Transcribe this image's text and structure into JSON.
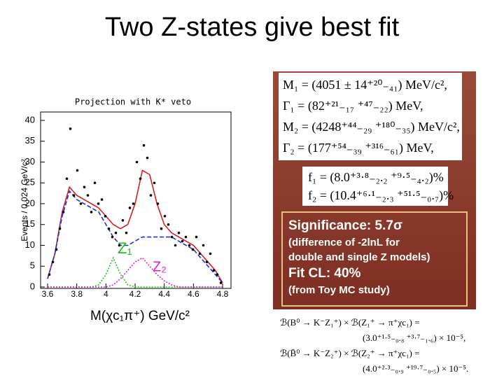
{
  "slide": {
    "title": "Two Z-states give best fit"
  },
  "chart_data": {
    "type": "histogram-fit",
    "title": "Projection with K* veto",
    "x_label": "M(χc₁π⁺) GeV/c²",
    "y_label": "Events / 0.024 GeV/c²",
    "xlim": [
      3.6,
      4.8
    ],
    "xticks": [
      3.6,
      3.8,
      4,
      4.2,
      4.4,
      4.6,
      4.8
    ],
    "ylim": [
      0,
      40
    ],
    "yticks": [
      0,
      5,
      10,
      15,
      20,
      25,
      30,
      35,
      40
    ],
    "series": [
      {
        "style": "points",
        "color": "#000000",
        "x": [
          3.612,
          3.636,
          3.66,
          3.684,
          3.708,
          3.732,
          3.756,
          3.78,
          3.804,
          3.828,
          3.852,
          3.876,
          3.9,
          3.924,
          3.948,
          3.972,
          3.996,
          4.02,
          4.044,
          4.068,
          4.092,
          4.116,
          4.14,
          4.164,
          4.188,
          4.212,
          4.236,
          4.26,
          4.284,
          4.308,
          4.332,
          4.356,
          4.38,
          4.404,
          4.428,
          4.452,
          4.476,
          4.5,
          4.524,
          4.548,
          4.572,
          4.596,
          4.62,
          4.644,
          4.668,
          4.692,
          4.716,
          4.74,
          4.764,
          4.788
        ],
        "values": [
          3,
          6,
          9,
          14,
          18,
          26,
          38,
          22,
          28,
          20,
          24,
          22,
          18,
          25,
          20,
          21,
          17,
          14,
          12,
          13,
          10,
          16,
          13,
          19,
          20,
          30,
          26,
          34,
          31,
          22,
          25,
          20,
          14,
          17,
          15,
          12,
          10,
          13,
          11,
          12,
          10,
          9,
          12,
          8,
          10,
          6,
          8,
          4,
          3,
          1
        ]
      },
      {
        "style": "solid",
        "color": "#d42020",
        "x": [
          3.6,
          3.65,
          3.7,
          3.75,
          3.8,
          3.85,
          3.9,
          3.95,
          4.0,
          4.05,
          4.1,
          4.15,
          4.2,
          4.25,
          4.3,
          4.35,
          4.4,
          4.45,
          4.5,
          4.55,
          4.6,
          4.65,
          4.7,
          4.75,
          4.8
        ],
        "values": [
          2,
          8,
          18,
          24,
          22,
          21,
          20,
          19,
          17,
          15,
          14,
          15,
          20,
          28,
          27,
          20,
          15,
          13,
          12,
          11,
          10,
          8,
          6,
          4,
          1
        ]
      },
      {
        "style": "dashed",
        "color": "#2030d0",
        "x": [
          3.6,
          3.65,
          3.7,
          3.75,
          3.8,
          3.85,
          3.9,
          3.95,
          4.0,
          4.05,
          4.1,
          4.15,
          4.2,
          4.25,
          4.3,
          4.35,
          4.4,
          4.45,
          4.5,
          4.55,
          4.6,
          4.65,
          4.7,
          4.75,
          4.8
        ],
        "values": [
          2,
          8,
          17,
          23,
          21,
          20,
          19,
          18,
          15,
          12,
          10,
          10,
          11,
          12,
          12,
          12,
          12,
          12,
          11,
          10,
          9,
          7,
          5,
          3,
          1
        ]
      },
      {
        "style": "dotted",
        "color": "#20c020",
        "x": [
          3.6,
          3.65,
          3.7,
          3.75,
          3.8,
          3.85,
          3.9,
          3.95,
          4.0,
          4.05,
          4.1,
          4.15,
          4.2,
          4.25,
          4.3,
          4.35,
          4.4,
          4.45,
          4.5,
          4.55,
          4.6,
          4.65,
          4.7,
          4.75,
          4.8
        ],
        "values": [
          0,
          0,
          0,
          0,
          0,
          0,
          0,
          0.5,
          3,
          7,
          3,
          0.5,
          0,
          0,
          0,
          0,
          0,
          0,
          0,
          0,
          0,
          0,
          0,
          0,
          0
        ]
      },
      {
        "style": "dotted",
        "color": "#e020d0",
        "x": [
          3.6,
          3.65,
          3.7,
          3.75,
          3.8,
          3.85,
          3.9,
          3.95,
          4.0,
          4.05,
          4.1,
          4.15,
          4.2,
          4.25,
          4.3,
          4.35,
          4.4,
          4.45,
          4.5,
          4.55,
          4.6,
          4.65,
          4.7,
          4.75,
          4.8
        ],
        "values": [
          0,
          0,
          0,
          0,
          0,
          0,
          0,
          0,
          0,
          0.5,
          2,
          4,
          6,
          7,
          5,
          3,
          1.5,
          0.5,
          0,
          0,
          0,
          0,
          0,
          0,
          0
        ]
      }
    ],
    "annotations": [
      {
        "text": "Z₁",
        "color": "#20c020"
      },
      {
        "text": "Z₂",
        "color": "#e020d0"
      }
    ]
  },
  "fit_results": {
    "params": [
      "M₁ = (4051 ± 14⁺²⁰₋₄₁) MeV/c²,",
      "Γ₁ = (82⁺²¹₋₁₇ ⁺⁴⁷₋₂₂) MeV,",
      "M₂ = (4248⁺⁴⁴₋₂₉ ⁺¹⁸⁰₋₃₅) MeV/c²,",
      "Γ₂ = (177⁺⁵⁴₋₃₉ ⁺³¹⁶₋₆₁) MeV,"
    ],
    "fractions": [
      "f₁  =  (8.0⁺³·⁸₋₂.₂ ⁺⁹·⁵₋₄.₂)%",
      "f₂  = (10.4⁺⁶·¹₋₂.₃ ⁺⁵¹·⁵₋₀.₇)%"
    ],
    "significance": [
      "Significance: 5.7σ",
      "(difference of -2lnL for",
      "double and single Z models)",
      "Fit CL: 40%",
      "(from Toy MC study)"
    ],
    "branching": [
      "ℬ(B⁰ → K⁻Z₁⁺) × ℬ(Z₁⁺ → π⁺χc₁) =",
      "(3.0⁺¹·⁵₋₀.₈ ⁺³·⁷₋₁.₆) × 10⁻⁵,",
      "ℬ(B̄⁰ → K⁻Z₂⁺) × ℬ(Z₂⁺ → π⁺χc₁) =",
      "(4.0⁺²·³₋₀.₉ ⁺¹⁹·⁷₋₀.₅) × 10⁻⁵."
    ]
  }
}
